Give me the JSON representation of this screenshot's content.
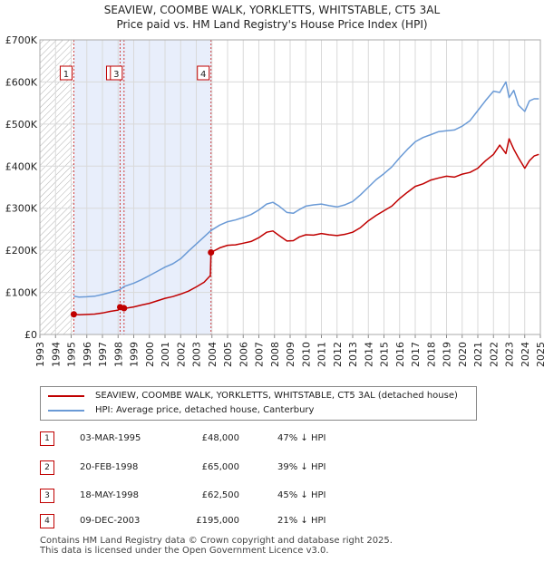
{
  "chart_data": {
    "type": "line",
    "title": "SEAVIEW, COOMBE WALK, YORKLETTS, WHITSTABLE, CT5 3AL",
    "subtitle": "Price paid vs. HM Land Registry's House Price Index (HPI)",
    "xlim": [
      1993,
      2025
    ],
    "ylim": [
      0,
      700000
    ],
    "x_ticks": [
      "1993",
      "1994",
      "1995",
      "1996",
      "1997",
      "1998",
      "1999",
      "2000",
      "2001",
      "2002",
      "2003",
      "2004",
      "2005",
      "2006",
      "2007",
      "2008",
      "2009",
      "2010",
      "2011",
      "2012",
      "2013",
      "2014",
      "2015",
      "2016",
      "2017",
      "2018",
      "2019",
      "2020",
      "2021",
      "2022",
      "2023",
      "2024",
      "2025"
    ],
    "y_ticks": [
      {
        "value": 0,
        "label": "£0"
      },
      {
        "value": 100000,
        "label": "£100K"
      },
      {
        "value": 200000,
        "label": "£200K"
      },
      {
        "value": 300000,
        "label": "£300K"
      },
      {
        "value": 400000,
        "label": "£400K"
      },
      {
        "value": 500000,
        "label": "£500K"
      },
      {
        "value": 600000,
        "label": "£600K"
      },
      {
        "value": 700000,
        "label": "£700K"
      }
    ],
    "hatched_before": 1995.17,
    "shaded_span": [
      1995.17,
      2003.94
    ],
    "series": [
      {
        "name": "SEAVIEW, COOMBE WALK, YORKLETTS, WHITSTABLE, CT5 3AL (detached house)",
        "color": "#c00000",
        "x": [
          1995.17,
          1995.5,
          1996,
          1996.5,
          1997,
          1997.5,
          1998.0,
          1998.13,
          1998.2,
          1998.38,
          1998.6,
          1999,
          1999.5,
          2000,
          2000.5,
          2001,
          2001.5,
          2002,
          2002.5,
          2003,
          2003.5,
          2003.9,
          2003.94,
          2004.5,
          2005,
          2005.5,
          2006,
          2006.5,
          2007,
          2007.5,
          2007.9,
          2008.3,
          2008.8,
          2009.2,
          2009.6,
          2010,
          2010.5,
          2011,
          2011.5,
          2012,
          2012.5,
          2013,
          2013.5,
          2014,
          2014.5,
          2015,
          2015.5,
          2016,
          2016.5,
          2017,
          2017.5,
          2018,
          2018.5,
          2019,
          2019.5,
          2020,
          2020.5,
          2021,
          2021.5,
          2022,
          2022.4,
          2022.8,
          2023.0,
          2023.3,
          2023.6,
          2024.0,
          2024.3,
          2024.6,
          2024.9
        ],
        "y": [
          48000,
          47000,
          47500,
          48500,
          51000,
          55000,
          58000,
          65000,
          64000,
          62500,
          63000,
          65500,
          70000,
          74000,
          80000,
          86000,
          90000,
          96000,
          103000,
          113000,
          124000,
          140000,
          195000,
          206000,
          212000,
          213000,
          217000,
          221000,
          230000,
          243000,
          246000,
          235000,
          222000,
          223000,
          232000,
          237000,
          236000,
          240000,
          237000,
          235000,
          238000,
          243000,
          254000,
          270000,
          283000,
          294000,
          305000,
          323000,
          338000,
          352000,
          358000,
          367000,
          372000,
          376000,
          374000,
          381000,
          385000,
          395000,
          413000,
          428000,
          450000,
          430000,
          465000,
          440000,
          420000,
          395000,
          413000,
          424000,
          428000
        ]
      },
      {
        "name": "HPI: Average price, detached house, Canterbury",
        "color": "#6a9ad6",
        "x": [
          1995.17,
          1995.5,
          1996,
          1996.5,
          1997,
          1997.5,
          1998.0,
          1998.13,
          1998.38,
          1999,
          1999.5,
          2000,
          2000.5,
          2001,
          2001.5,
          2002,
          2002.5,
          2003,
          2003.5,
          2003.94,
          2004.5,
          2005,
          2005.5,
          2006,
          2006.5,
          2007,
          2007.5,
          2007.9,
          2008.3,
          2008.8,
          2009.2,
          2009.6,
          2010,
          2010.5,
          2011,
          2011.5,
          2012,
          2012.5,
          2013,
          2013.5,
          2014,
          2014.5,
          2015,
          2015.5,
          2016,
          2016.5,
          2017,
          2017.5,
          2018,
          2018.5,
          2019,
          2019.5,
          2020,
          2020.5,
          2021,
          2021.5,
          2022,
          2022.4,
          2022.8,
          2023.0,
          2023.3,
          2023.6,
          2024.0,
          2024.3,
          2024.6,
          2024.9
        ],
        "y": [
          91000,
          89000,
          89500,
          91000,
          95000,
          100000,
          105000,
          107000,
          114000,
          122000,
          130000,
          140000,
          150000,
          160000,
          168000,
          180000,
          198000,
          215000,
          232000,
          247000,
          260000,
          268000,
          272000,
          278000,
          285000,
          296000,
          310000,
          314000,
          305000,
          290000,
          288000,
          297000,
          305000,
          308000,
          310000,
          306000,
          303000,
          308000,
          316000,
          332000,
          350000,
          368000,
          382000,
          398000,
          420000,
          440000,
          458000,
          468000,
          475000,
          482000,
          484000,
          486000,
          495000,
          508000,
          532000,
          556000,
          578000,
          575000,
          600000,
          563000,
          580000,
          545000,
          530000,
          555000,
          560000,
          560000
        ]
      }
    ],
    "transactions": [
      {
        "num": "1",
        "x": 1995.17,
        "y": 48000,
        "date": "03-MAR-1995",
        "price": "£48,000",
        "hpi": "47% ↓ HPI"
      },
      {
        "num": "2",
        "x": 1998.13,
        "y": 65000,
        "date": "20-FEB-1998",
        "price": "£65,000",
        "hpi": "39% ↓ HPI"
      },
      {
        "num": "3",
        "x": 1998.38,
        "y": 62500,
        "date": "18-MAY-1998",
        "price": "£62,500",
        "hpi": "45% ↓ HPI"
      },
      {
        "num": "4",
        "x": 2003.94,
        "y": 195000,
        "date": "09-DEC-2003",
        "price": "£195,000",
        "hpi": "21% ↓ HPI"
      }
    ]
  },
  "legend": {
    "property_label": "SEAVIEW, COOMBE WALK, YORKLETTS, WHITSTABLE, CT5 3AL (detached house)",
    "hpi_label": "HPI: Average price, detached house, Canterbury",
    "property_color": "#c00000",
    "hpi_color": "#6a9ad6"
  },
  "footer": {
    "line1": "Contains HM Land Registry data © Crown copyright and database right 2025.",
    "line2": "This data is licensed under the Open Government Licence v3.0."
  }
}
